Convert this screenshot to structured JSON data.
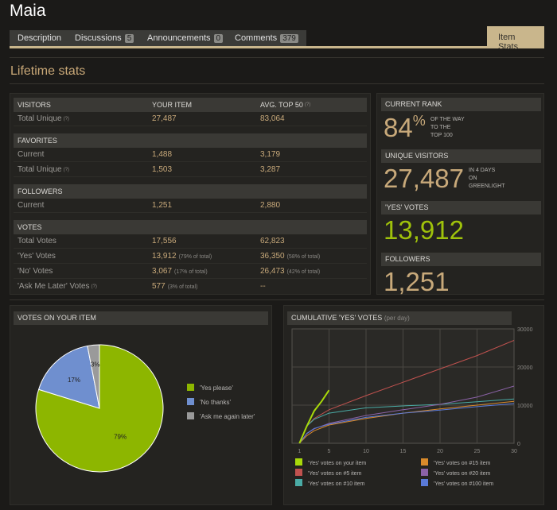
{
  "page": {
    "title": "Maia"
  },
  "tabs": [
    {
      "label": "Description",
      "count": null
    },
    {
      "label": "Discussions",
      "count": "5"
    },
    {
      "label": "Announcements",
      "count": "0"
    },
    {
      "label": "Comments",
      "count": "379"
    }
  ],
  "active_tab": {
    "label": "Item Stats"
  },
  "section": {
    "title": "Lifetime stats"
  },
  "table": {
    "visitors_head": {
      "label": "VISITORS",
      "col2": "YOUR ITEM",
      "col3": "AVG. TOP 50"
    },
    "visitors": [
      {
        "label": "Total Unique",
        "your": "27,487",
        "avg": "83,064"
      }
    ],
    "favorites_head": "FAVORITES",
    "favorites": [
      {
        "label": "Current",
        "your": "1,488",
        "avg": "3,179"
      },
      {
        "label": "Total Unique",
        "your": "1,503",
        "avg": "3,287"
      }
    ],
    "followers_head": "FOLLOWERS",
    "followers": [
      {
        "label": "Current",
        "your": "1,251",
        "avg": "2,880"
      }
    ],
    "votes_head": "VOTES",
    "votes": [
      {
        "label": "Total Votes",
        "your": "17,556",
        "your_note": "",
        "avg": "62,823",
        "avg_note": ""
      },
      {
        "label": "'Yes' Votes",
        "your": "13,912",
        "your_note": "(79% of total)",
        "avg": "36,350",
        "avg_note": "(58% of total)"
      },
      {
        "label": "'No' Votes",
        "your": "3,067",
        "your_note": "(17% of total)",
        "avg": "26,473",
        "avg_note": "(42% of total)"
      },
      {
        "label": "'Ask Me Later' Votes",
        "your": "577",
        "your_note": "(3% of total)",
        "avg": "--",
        "avg_note": ""
      }
    ],
    "help_mark": "(?)"
  },
  "summary": {
    "rank_head": "CURRENT RANK",
    "rank_value": "84",
    "rank_unit": "%",
    "rank_note": [
      "OF THE WAY",
      "TO THE",
      "TOP 100"
    ],
    "visitors_head": "UNIQUE VISITORS",
    "visitors_value": "27,487",
    "visitors_note": [
      "IN 4 DAYS",
      "ON",
      "GREENLIGHT"
    ],
    "yes_head": "'YES' VOTES",
    "yes_value": "13,912",
    "followers_head": "FOLLOWERS",
    "followers_value": "1,251",
    "colors": {
      "accent": "#c8a97a",
      "yes": "#9fc20b"
    }
  },
  "pie": {
    "title": "VOTES ON YOUR ITEM",
    "legend": [
      "'Yes please'",
      "'No thanks'",
      "'Ask me again later'"
    ]
  },
  "cumulative": {
    "title": "CUMULATIVE 'YES' VOTES",
    "subtitle": "(per day)"
  },
  "chart_data": [
    {
      "type": "pie",
      "title": "VOTES ON YOUR ITEM",
      "labels": [
        "'Yes please'",
        "'No thanks'",
        "'Ask me again later'"
      ],
      "values": [
        79,
        17,
        3
      ],
      "value_labels": [
        "79%",
        "17%",
        "3%"
      ],
      "colors": [
        "#8db600",
        "#6f8fcf",
        "#9a9a9a"
      ]
    },
    {
      "type": "line",
      "title": "CUMULATIVE 'YES' VOTES",
      "subtitle": "(per day)",
      "xlim": [
        0,
        30
      ],
      "ylim": [
        0,
        30000
      ],
      "xticks": [
        1,
        5,
        10,
        15,
        20,
        25,
        30
      ],
      "yticks": [
        0,
        10000,
        20000,
        30000
      ],
      "series": [
        {
          "name": "'Yes' votes on your item",
          "color": "#a8d90a",
          "x": [
            1,
            2,
            3,
            4,
            5
          ],
          "y": [
            0,
            4500,
            8500,
            11000,
            13912
          ]
        },
        {
          "name": "'Yes' votes on #5 item",
          "color": "#c0524f",
          "x": [
            1,
            2,
            3,
            5,
            10,
            15,
            20,
            25,
            30
          ],
          "y": [
            0,
            4500,
            6500,
            8800,
            12500,
            16000,
            19500,
            23000,
            27000
          ]
        },
        {
          "name": "'Yes' votes on #10 item",
          "color": "#4aaba5",
          "x": [
            1,
            2,
            3,
            5,
            10,
            15,
            20,
            25,
            30
          ],
          "y": [
            0,
            4500,
            6300,
            7900,
            9300,
            9800,
            10200,
            10900,
            11600
          ]
        },
        {
          "name": "'Yes' votes on #15 item",
          "color": "#d98a2b",
          "x": [
            1,
            2,
            3,
            5,
            10,
            15,
            20,
            25,
            30
          ],
          "y": [
            0,
            2000,
            3300,
            4800,
            6500,
            7900,
            9000,
            10000,
            11000
          ]
        },
        {
          "name": "'Yes' votes on #20 item",
          "color": "#8b62a7",
          "x": [
            1,
            2,
            3,
            5,
            10,
            15,
            20,
            25,
            30
          ],
          "y": [
            0,
            2500,
            3800,
            5200,
            7300,
            8800,
            10200,
            12100,
            15000
          ]
        },
        {
          "name": "'Yes' votes on #100 item",
          "color": "#5a7ad8",
          "x": [
            1,
            2,
            3,
            5,
            10,
            15,
            20,
            25,
            30
          ],
          "y": [
            0,
            2600,
            3900,
            5000,
            6800,
            7900,
            8700,
            9600,
            10400
          ]
        }
      ]
    }
  ]
}
